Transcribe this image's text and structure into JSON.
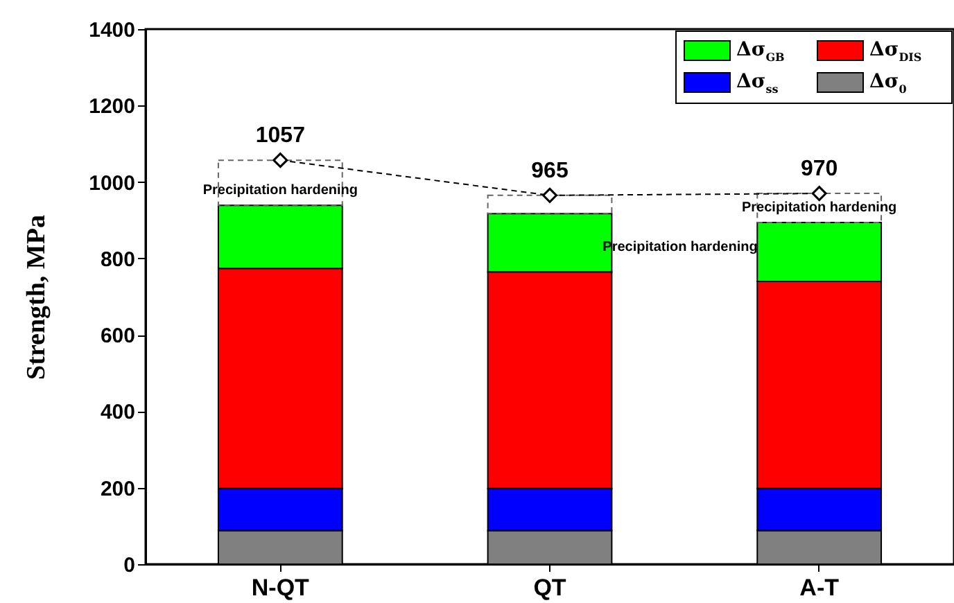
{
  "chart_data": {
    "type": "bar",
    "stacked": true,
    "ylabel": "Strength, MPa",
    "categories": [
      "N-QT",
      "QT",
      "A-T"
    ],
    "ylim": [
      0,
      1400
    ],
    "yticks": [
      0,
      200,
      400,
      600,
      800,
      1000,
      1200,
      1400
    ],
    "legend": "top right",
    "grid": false,
    "series": [
      {
        "name": "Δσ$_{0}$",
        "color": "#808080",
        "values": [
          88,
          88,
          88
        ]
      },
      {
        "name": "Δσ$_{ss}$",
        "color": "#0000ff",
        "values": [
          110,
          110,
          110
        ]
      },
      {
        "name": "Δσ$_{DIS}$",
        "color": "#ff0000",
        "values": [
          576,
          567,
          542
        ]
      },
      {
        "name": "Δσ$_{GB}$",
        "color": "#00ff00",
        "values": [
          165,
          152,
          154
        ]
      },
      {
        "color": "#666666",
        "line_style": "dashed",
        "values": [
          118,
          48,
          76
        ]
      },
      {
        "type": "line",
        "color": "#000000",
        "marker": "diamond",
        "line_style": "dashed",
        "values": [
          1057,
          965,
          970
        ],
        "value_labels": [
          "1057",
          "965",
          "970"
        ]
      }
    ],
    "annotations": [
      "Precipitation hardening",
      "Precipitation hardening",
      "Precipitation hardening"
    ]
  }
}
